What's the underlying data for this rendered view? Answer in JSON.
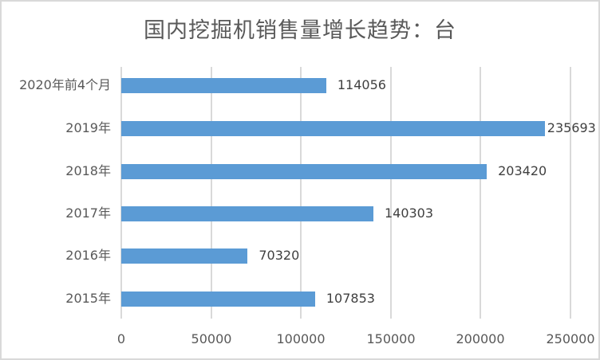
{
  "chart_data": {
    "type": "bar",
    "orientation": "horizontal",
    "title": "国内挖掘机销售量增长趋势：台",
    "xlabel": "",
    "ylabel": "",
    "categories": [
      "2020年前4个月",
      "2019年",
      "2018年",
      "2017年",
      "2016年",
      "2015年"
    ],
    "values": [
      114056,
      235693,
      203420,
      140303,
      70320,
      107853
    ],
    "labels": [
      "114056",
      "235693",
      "203420",
      "140303",
      "70320",
      "107853"
    ],
    "xlim": [
      0,
      250000
    ],
    "xticks": [
      "0",
      "50000",
      "100000",
      "150000",
      "200000",
      "250000"
    ],
    "grid": true,
    "legend": "none",
    "bar_color": "#5b9bd5"
  }
}
